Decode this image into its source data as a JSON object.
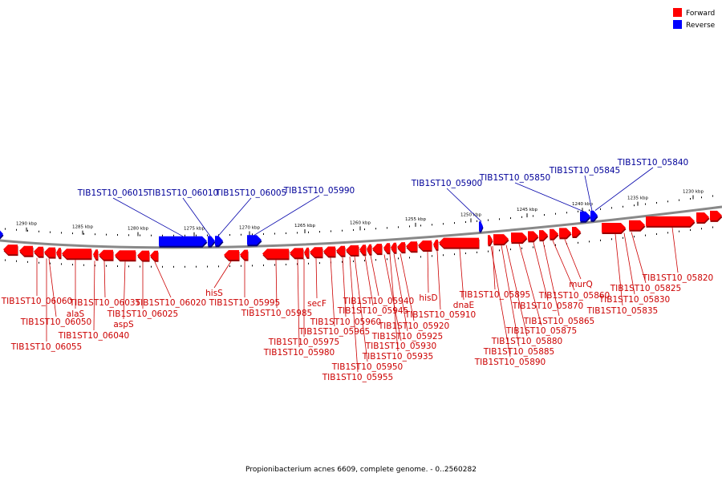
{
  "caption": "Propionibacterium acnes 6609, complete genome. - 0..2560282",
  "legend": [
    {
      "label": "Forward",
      "color": "#ff0000"
    },
    {
      "label": "Reverse",
      "color": "#0000ff"
    }
  ],
  "colors": {
    "forward": "#ff0000",
    "reverse": "#0000ff",
    "forward_label": "#cc0000",
    "reverse_label": "#000099",
    "backbone": "#888888"
  },
  "ticks": [
    "1290 kbp",
    "1285 kbp",
    "1280 kbp",
    "1275 kbp",
    "1270 kbp",
    "1265 kbp",
    "1260 kbp",
    "1255 kbp",
    "1250 kbp",
    "1245 kbp",
    "1240 kbp",
    "1235 kbp",
    "1230 kbp"
  ],
  "reverse_labels": [
    "TIB1ST10_06015",
    "TIB1ST10_06010",
    "TIB1ST10_06005",
    "TIB1ST10_05990",
    "TIB1ST10_05900",
    "TIB1ST10_05850",
    "TIB1ST10_05845",
    "TIB1ST10_05840"
  ],
  "forward_labels": [
    "TIB1ST10_06060",
    "alaS",
    "TIB1ST10_06050",
    "TIB1ST10_06055",
    "TIB1ST10_06040",
    "TIB1ST10_06035",
    "aspS",
    "TIB1ST10_06025",
    "TIB1ST10_06020",
    "hisS",
    "TIB1ST10_05995",
    "TIB1ST10_05985",
    "secF",
    "TIB1ST10_05975",
    "TIB1ST10_05980",
    "TIB1ST10_05965",
    "TIB1ST10_05960",
    "TIB1ST10_05945",
    "TIB1ST10_05940",
    "TIB1ST10_05950",
    "TIB1ST10_05955",
    "TIB1ST10_05935",
    "TIB1ST10_05930",
    "TIB1ST10_05925",
    "TIB1ST10_05920",
    "hisD",
    "TIB1ST10_05910",
    "dnaE",
    "TIB1ST10_05895",
    "TIB1ST10_05890",
    "TIB1ST10_05885",
    "TIB1ST10_05880",
    "TIB1ST10_05875",
    "TIB1ST10_05870",
    "TIB1ST10_05865",
    "TIB1ST10_05860",
    "murQ",
    "TIB1ST10_05835",
    "TIB1ST10_05830",
    "TIB1ST10_05825",
    "TIB1ST10_05820"
  ]
}
